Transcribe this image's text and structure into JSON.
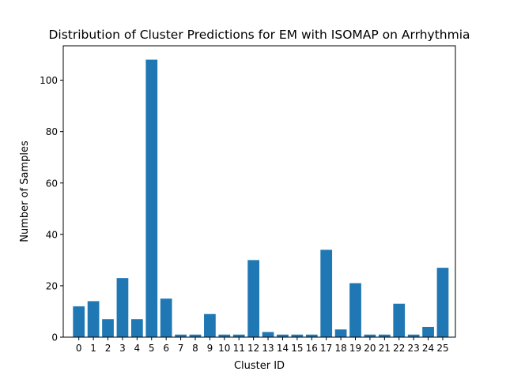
{
  "chart_data": {
    "type": "bar",
    "title": "Distribution of Cluster Predictions for EM with ISOMAP on Arrhythmia",
    "xlabel": "Cluster ID",
    "ylabel": "Number of Samples",
    "categories": [
      "0",
      "1",
      "2",
      "3",
      "4",
      "5",
      "6",
      "7",
      "8",
      "9",
      "10",
      "11",
      "12",
      "13",
      "14",
      "15",
      "16",
      "17",
      "18",
      "19",
      "20",
      "21",
      "22",
      "23",
      "24",
      "25"
    ],
    "values": [
      12,
      14,
      7,
      23,
      7,
      108,
      15,
      1,
      1,
      9,
      1,
      1,
      30,
      2,
      1,
      1,
      1,
      34,
      3,
      21,
      1,
      1,
      13,
      1,
      4,
      27
    ],
    "ylim": [
      0,
      113.4
    ],
    "yticks": [
      0,
      20,
      40,
      60,
      80,
      100
    ],
    "grid": false,
    "bar_color": "#1f77b4"
  }
}
